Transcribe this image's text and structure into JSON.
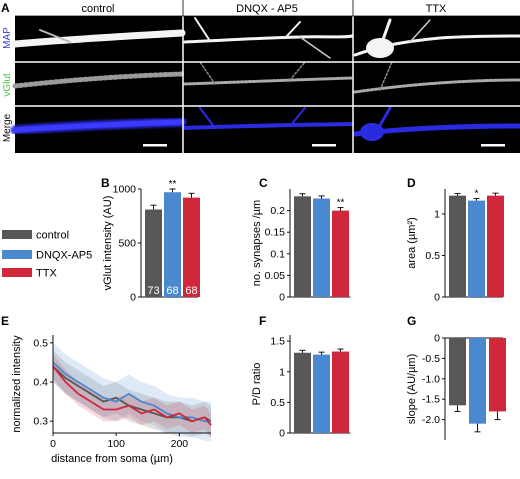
{
  "panel_letters": {
    "A": "A",
    "B": "B",
    "C": "C",
    "D": "D",
    "E": "E",
    "F": "F",
    "G": "G"
  },
  "micrographs": {
    "columns": [
      "control",
      "DNQX - AP5",
      "TTX"
    ],
    "rows": [
      {
        "label": "MAP",
        "color": "#3b3bd6"
      },
      {
        "label": "vGlut",
        "color": "#46c246"
      },
      {
        "label": "Merge",
        "color": "#111111"
      }
    ]
  },
  "legend": [
    {
      "label": "control",
      "color": "#575757"
    },
    {
      "label": "DNQX-AP5",
      "color": "#4a88cf"
    },
    {
      "label": "TTX",
      "color": "#d0283a"
    }
  ],
  "colors": {
    "control": "#575757",
    "dnqx": "#4a88cf",
    "ttx": "#d0283a"
  },
  "chart_data": [
    {
      "id": "B",
      "type": "bar",
      "ylabel": "vGlut intensity (AU)",
      "ylim": [
        0,
        1000
      ],
      "yticks": [
        0,
        500,
        1000
      ],
      "categories": [
        "control",
        "DNQX-AP5",
        "TTX"
      ],
      "values": [
        810,
        970,
        920
      ],
      "errors": [
        40,
        30,
        40
      ],
      "bar_labels": [
        "73",
        "68",
        "68"
      ],
      "significance": [
        "",
        "**",
        ""
      ]
    },
    {
      "id": "C",
      "type": "bar",
      "ylabel": "no. synapses /µm",
      "ylim": [
        0,
        0.25
      ],
      "yticks": [
        0,
        0.05,
        0.1,
        0.15,
        0.2
      ],
      "ytick_labels": [
        "0",
        "0.05",
        "0.1",
        "0.15",
        "0.2"
      ],
      "categories": [
        "control",
        "DNQX-AP5",
        "TTX"
      ],
      "values": [
        0.233,
        0.228,
        0.2
      ],
      "errors": [
        0.006,
        0.006,
        0.007
      ],
      "significance": [
        "",
        "",
        "**"
      ]
    },
    {
      "id": "D",
      "type": "bar",
      "ylabel": "area (µm²)",
      "ylim": [
        0,
        1.3
      ],
      "yticks": [
        0,
        0.5,
        1
      ],
      "categories": [
        "control",
        "DNQX-AP5",
        "TTX"
      ],
      "values": [
        1.22,
        1.16,
        1.22
      ],
      "errors": [
        0.025,
        0.025,
        0.03
      ],
      "significance": [
        "",
        "*",
        ""
      ]
    },
    {
      "id": "E",
      "type": "line",
      "xlabel": "distance from soma (µm)",
      "ylabel": "normalized intensity",
      "xlim": [
        0,
        250
      ],
      "ylim": [
        0.27,
        0.52
      ],
      "xticks": [
        0,
        100,
        200
      ],
      "yticks": [
        0.3,
        0.4,
        0.5
      ],
      "series": [
        {
          "key": "control",
          "x": [
            0,
            20,
            40,
            60,
            80,
            100,
            120,
            140,
            160,
            180,
            200,
            220,
            240,
            250
          ],
          "y": [
            0.44,
            0.41,
            0.39,
            0.37,
            0.35,
            0.36,
            0.34,
            0.33,
            0.32,
            0.31,
            0.31,
            0.3,
            0.31,
            0.3
          ],
          "band": 0.04
        },
        {
          "key": "dnqx",
          "x": [
            0,
            20,
            40,
            60,
            80,
            100,
            120,
            140,
            160,
            180,
            200,
            220,
            240,
            250
          ],
          "y": [
            0.45,
            0.42,
            0.4,
            0.38,
            0.36,
            0.35,
            0.37,
            0.35,
            0.34,
            0.32,
            0.31,
            0.31,
            0.3,
            0.3
          ],
          "band": 0.05
        },
        {
          "key": "ttx",
          "x": [
            0,
            20,
            40,
            60,
            80,
            100,
            120,
            140,
            160,
            180,
            200,
            220,
            240,
            250
          ],
          "y": [
            0.44,
            0.4,
            0.37,
            0.35,
            0.33,
            0.33,
            0.34,
            0.32,
            0.33,
            0.31,
            0.32,
            0.3,
            0.31,
            0.29
          ],
          "band": 0.03
        }
      ]
    },
    {
      "id": "F",
      "type": "bar",
      "ylabel": "P/D ratio",
      "ylim": [
        0,
        1.6
      ],
      "yticks": [
        0,
        0.5,
        1,
        1.5
      ],
      "categories": [
        "control",
        "DNQX-AP5",
        "TTX"
      ],
      "values": [
        1.31,
        1.28,
        1.33
      ],
      "errors": [
        0.04,
        0.04,
        0.04
      ]
    },
    {
      "id": "G",
      "type": "bar",
      "ylabel": "slope (AU/µm)",
      "ylim": [
        -2.5,
        0
      ],
      "yticks": [
        0,
        -0.5,
        -1,
        -1.5,
        -2
      ],
      "ytick_labels": [
        "0",
        "-0.5",
        "-1.0",
        "-1.5",
        "-2.0"
      ],
      "categories": [
        "control",
        "DNQX-AP5",
        "TTX"
      ],
      "values": [
        -1.65,
        -2.1,
        -1.8
      ],
      "errors": [
        0.15,
        0.2,
        0.2
      ]
    }
  ]
}
